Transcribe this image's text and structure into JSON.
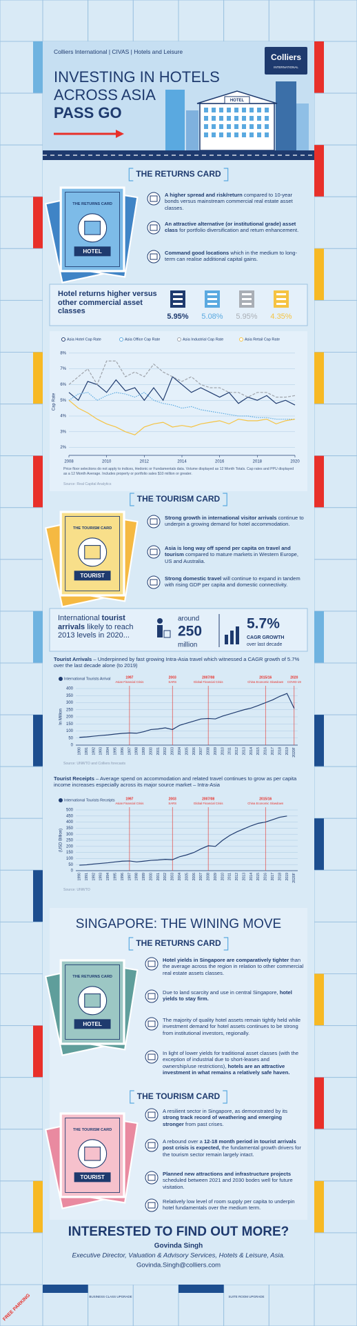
{
  "board": {
    "labels": [
      "FREE PARKING",
      "BUSINESS CLASS UPGRADE",
      "SUITE ROOM UPGRADE"
    ]
  },
  "header": {
    "breadcrumb": "Colliers International | CIVAS | Hotels and Leisure",
    "logo": {
      "name": "Colliers",
      "tagline": "INTERNATIONAL"
    },
    "title": [
      "INVESTING IN HOTELS",
      "ACROSS ASIA",
      "PASS GO"
    ],
    "hotel_sign": "HOTEL"
  },
  "returns_card": {
    "heading": "THE RETURNS CARD",
    "card": {
      "title": "THE RETURNS CARD",
      "label": "HOTEL"
    },
    "bullets": [
      {
        "parts": [
          {
            "strong": "A higher spread and risk/return"
          },
          {
            "text": " compared to 10-year bonds versus mainstream commercial real estate asset classes."
          }
        ]
      },
      {
        "parts": [
          {
            "strong": "An attractive alternative (or institutional grade) asset class"
          },
          {
            "text": " for portfolio diversification and return enhancement."
          }
        ]
      },
      {
        "parts": [
          {
            "strong": "Command good locations"
          },
          {
            "text": " which in the medium to long-term can realise additional capital gains."
          }
        ]
      }
    ]
  },
  "hotel_returns": {
    "title": "Hotel returns higher versus other commercial asset classes",
    "items": [
      {
        "label": "5.95%",
        "color": "#1e3a6e"
      },
      {
        "label": "5.08%",
        "color": "#5aa9e0"
      },
      {
        "label": "5.95%",
        "color": "#a9aeb5"
      },
      {
        "label": "4.35%",
        "color": "#f5c342"
      }
    ]
  },
  "chart_data": [
    {
      "type": "line",
      "x": [
        2008,
        2008.5,
        2009,
        2009.5,
        2010,
        2010.5,
        2011,
        2011.5,
        2012,
        2012.5,
        2013,
        2013.5,
        2014,
        2014.5,
        2015,
        2015.5,
        2016,
        2016.5,
        2017,
        2017.5,
        2018,
        2018.5,
        2019,
        2019.5,
        2020
      ],
      "xlim": [
        2008,
        2020
      ],
      "xticks": [
        2008,
        2010,
        2012,
        2014,
        2016,
        2018,
        2020
      ],
      "ylim": [
        1.5,
        8.3
      ],
      "yticks": [
        {
          "value": 2,
          "label": "2%"
        },
        {
          "value": 3,
          "label": "3%"
        },
        {
          "value": 4,
          "label": "4%"
        },
        {
          "value": 5,
          "label": "5%"
        },
        {
          "value": 6,
          "label": "6%"
        },
        {
          "value": 7,
          "label": "7%"
        },
        {
          "value": 8,
          "label": "8%"
        }
      ],
      "y_label": "Cap Rate",
      "grid": true,
      "series": [
        {
          "name": "Asia Hotel Cap Rate",
          "color": "#1e3a6e",
          "dash": "solid",
          "values": [
            5.5,
            5.0,
            6.2,
            6.0,
            5.5,
            6.3,
            5.6,
            5.8,
            5.0,
            5.8,
            5.0,
            6.5,
            6.0,
            5.5,
            5.8,
            5.5,
            5.2,
            5.5,
            4.8,
            5.2,
            5.0,
            5.3,
            4.8,
            5.0,
            4.7
          ]
        },
        {
          "name": "Asia Office Cap Rate",
          "color": "#5aa9e0",
          "dash": "dotted",
          "values": [
            5.0,
            5.4,
            5.5,
            5.0,
            5.3,
            5.5,
            5.4,
            5.2,
            5.5,
            5.0,
            4.8,
            4.7,
            4.5,
            4.6,
            4.4,
            4.3,
            4.2,
            4.1,
            4.0,
            4.0,
            3.9,
            3.9,
            3.8,
            3.8,
            3.8
          ]
        },
        {
          "name": "Asia Industrial Cap Rate",
          "color": "#9ea3aa",
          "dash": "dashed",
          "values": [
            6.0,
            6.5,
            7.0,
            6.0,
            7.5,
            7.5,
            6.5,
            6.8,
            6.5,
            7.3,
            6.8,
            6.5,
            6.2,
            6.5,
            6.0,
            5.8,
            5.8,
            5.5,
            5.5,
            5.2,
            5.5,
            5.5,
            5.2,
            5.2,
            5.3
          ]
        },
        {
          "name": "Asia Retail Cap Rate",
          "color": "#f5c342",
          "dash": "solid",
          "values": [
            5.0,
            4.5,
            4.2,
            3.8,
            3.5,
            3.3,
            3.0,
            2.8,
            3.3,
            3.5,
            3.6,
            3.3,
            3.4,
            3.3,
            3.5,
            3.6,
            3.7,
            3.5,
            3.8,
            3.7,
            3.7,
            3.8,
            3.5,
            3.7,
            3.8
          ]
        }
      ],
      "note": "Price floor selections do not apply to indices, Hedonic or Fundamentals data. Volume displayed as 12 Month Totals. Cap rates and PPU displayed as a 12 Month Average. Includes property or portfolio sales $10 million or greater.",
      "source": "Source: Real Capital Analytics"
    },
    {
      "type": "line",
      "title": [
        {
          "strong": "Tourist Arrivals"
        },
        {
          "text": " – Underpinned by fast growing Intra-Asia travel which witnessed a CAGR growth of 5.7% over the last decade alone (to 2019)"
        }
      ],
      "categories": [
        "1990",
        "1991",
        "1992",
        "1993",
        "1994",
        "1995",
        "1996",
        "1997",
        "1998",
        "1999",
        "2000",
        "2001",
        "2002",
        "2003",
        "2004",
        "2005",
        "2006",
        "2007",
        "2008",
        "2009",
        "2010",
        "2011",
        "2012",
        "2013",
        "2014",
        "2015",
        "2016",
        "2017",
        "2018",
        "2019",
        "2020F"
      ],
      "series": [
        {
          "name": "International Tourists Arrival",
          "color": "#1e3a6e",
          "values": [
            55,
            58,
            63,
            68,
            72,
            78,
            83,
            86,
            84,
            95,
            110,
            114,
            122,
            110,
            140,
            155,
            170,
            185,
            188,
            185,
            205,
            220,
            235,
            250,
            262,
            280,
            300,
            320,
            345,
            365,
            260
          ]
        }
      ],
      "ylim": [
        0,
        400
      ],
      "yticks": [
        0,
        50,
        100,
        150,
        200,
        250,
        300,
        350,
        400
      ],
      "y_label": "In Million",
      "grid": true,
      "annotations": [
        {
          "year": "1997",
          "event": "Asian Financial Crisis",
          "category": "1997"
        },
        {
          "year": "2003",
          "event": "SARS",
          "category": "2003"
        },
        {
          "year": "2007/08",
          "event": "Global Financial Crisis",
          "category": "2008"
        },
        {
          "year": "2015/16",
          "event": "China Economic Slowdown",
          "category": "2016"
        },
        {
          "year": "2020",
          "event": "COVID-19",
          "category": "2020F"
        }
      ],
      "source": "Source: UNWTO and Colliers forecasts"
    },
    {
      "type": "line",
      "title": [
        {
          "strong": "Tourist Receipts"
        },
        {
          "text": " – Average spend on accommodation and related travel continues to grow as per capita income increases especially across its major source market – Intra-Asia"
        }
      ],
      "categories": [
        "1990",
        "1991",
        "1992",
        "1993",
        "1994",
        "1995",
        "1996",
        "1997",
        "1998",
        "1999",
        "2000",
        "2001",
        "2002",
        "2003",
        "2004",
        "2005",
        "2006",
        "2007",
        "2008",
        "2009",
        "2010",
        "2011",
        "2012",
        "2013",
        "2014",
        "2015",
        "2016",
        "2017",
        "2018",
        "2019",
        "2020F"
      ],
      "series": [
        {
          "name": "International Tourists Receipts",
          "color": "#1e3a6e",
          "values": [
            45,
            48,
            55,
            60,
            65,
            72,
            78,
            80,
            72,
            78,
            85,
            88,
            93,
            90,
            115,
            130,
            150,
            180,
            205,
            200,
            250,
            290,
            320,
            345,
            370,
            390,
            400,
            420,
            440,
            450,
            null
          ]
        }
      ],
      "ylim": [
        0,
        500
      ],
      "yticks": [
        0,
        50,
        100,
        150,
        200,
        250,
        300,
        350,
        400,
        450,
        500
      ],
      "y_label": "(USD Billion)",
      "grid": true,
      "annotations": [
        {
          "year": "1997",
          "event": "Asian Financial Crisis",
          "category": "1997"
        },
        {
          "year": "2003",
          "event": "SARS",
          "category": "2003"
        },
        {
          "year": "2007/08",
          "event": "Global Financial Crisis",
          "category": "2008"
        },
        {
          "year": "2015/16",
          "event": "China Economic Slowdown",
          "category": "2016"
        }
      ],
      "source": "Source: UNWTO"
    }
  ],
  "tourism_card": {
    "heading": "THE TOURISM CARD",
    "card": {
      "title": "THE TOURISM CARD",
      "label": "TOURIST"
    },
    "bullets": [
      {
        "parts": [
          {
            "strong": "Strong growth in international visitor arrivals"
          },
          {
            "text": " continue to underpin a growing demand for hotel accommodation."
          }
        ]
      },
      {
        "parts": [
          {
            "strong": "Asia is long way off spend per capita on travel and tourism"
          },
          {
            "text": " compared to mature markets in Western Europe, US and Australia."
          }
        ]
      },
      {
        "parts": [
          {
            "strong": "Strong domestic travel"
          },
          {
            "text": " will continue to expand in tandem with rising GDP per capita and domestic connectivity."
          }
        ]
      }
    ]
  },
  "tourist_stats": {
    "headline": [
      {
        "text": "International "
      },
      {
        "strong": "tourist arrivals"
      },
      {
        "text": " likely to reach 2013 levels in 2020..."
      }
    ],
    "arrivals": {
      "prefix": "around",
      "number": "250",
      "unit": "million"
    },
    "growth": {
      "number": "5.7%",
      "label": "CAGR GROWTH",
      "note": "over last decade"
    }
  },
  "singapore": {
    "heading": "SINGAPORE: THE WINING MOVE",
    "returns_card": {
      "heading": "THE RETURNS CARD",
      "card": {
        "title": "THE RETURNS CARD",
        "label": "HOTEL"
      },
      "bullets": [
        {
          "parts": [
            {
              "strong": "Hotel yields in Singapore are comparatively tighter"
            },
            {
              "text": " than the average across the region in relation to other commercial real estate assets classes."
            }
          ]
        },
        {
          "parts": [
            {
              "text": "Due to land scarcity and use in central Singapore, "
            },
            {
              "strong": "hotel yields to stay firm."
            }
          ]
        },
        {
          "parts": [
            {
              "text": "The majority of quality hotel assets remain tightly held while investment demand for hotel assets continues to be strong from institutional investors, regionally."
            }
          ]
        },
        {
          "parts": [
            {
              "text": "In light of lower yields for traditional asset classes (with the exception of industrial due to short-leases and ownership/use restrictions), "
            },
            {
              "strong": "hotels are an attractive investment in what remains a relatively safe haven."
            }
          ]
        }
      ]
    },
    "tourism_card": {
      "heading": "THE TOURISM CARD",
      "card": {
        "title": "THE TOURISM CARD",
        "label": "TOURIST"
      },
      "bullets": [
        {
          "parts": [
            {
              "text": "A resilient sector in Singapore, as demonstrated by its "
            },
            {
              "strong": "strong track record of weathering and emerging stronger"
            },
            {
              "text": " from past crises."
            }
          ]
        },
        {
          "parts": [
            {
              "text": "A rebound over a "
            },
            {
              "strong": "12-18 month period in tourist arrivals post crisis is expected,"
            },
            {
              "text": " the fundamental growth drivers for the tourism sector remain largely intact."
            }
          ]
        },
        {
          "parts": [
            {
              "strong": "Planned new attractions and infrastructure projects"
            },
            {
              "text": " scheduled between 2021 and 2030 bodes well for future visitation."
            }
          ]
        },
        {
          "parts": [
            {
              "text": "Relatively low level of room supply per capita to underpin hotel fundamentals over the medium term."
            }
          ]
        }
      ]
    }
  },
  "contact": {
    "heading": "INTERESTED TO FIND OUT MORE?",
    "name": "Govinda Singh",
    "role": "Executive Director, Valuation & Advisory Services, Hotels & Leisure, Asia.",
    "email": "Govinda.Singh@colliers.com"
  }
}
